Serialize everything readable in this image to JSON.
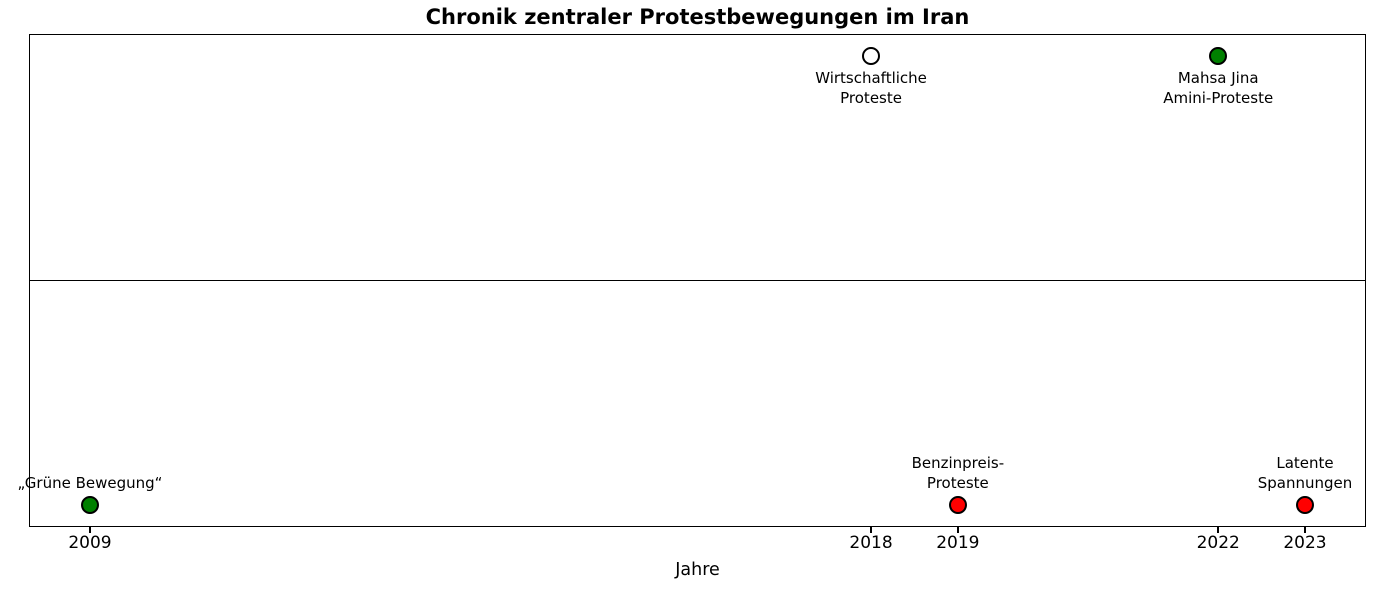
{
  "chart_data": {
    "type": "scatter",
    "title": "Chronik zentraler Protestbewegungen im Iran",
    "xlabel": "Jahre",
    "ylabel": "",
    "x_ticks": [
      "2009",
      "2018",
      "2019",
      "2022",
      "2023"
    ],
    "xlim": [
      2008.3,
      2023.7
    ],
    "grid": false,
    "legend": "none",
    "baseline": "horizontal line across vertical center of plot",
    "marker_edge_color": "#000000",
    "colors": {
      "background": "#ffffff",
      "axis": "#000000",
      "text": "#000000",
      "green_event": "#008000",
      "red_event": "#ff0000",
      "open_event": "#ffffff"
    },
    "events": [
      {
        "year": 2009,
        "label": "„Grüne Bewegung“",
        "label_lines": [
          "„Grüne Bewegung“"
        ],
        "marker_color": "#008000",
        "marker_style": "filled",
        "side": "bottom"
      },
      {
        "year": 2018,
        "label": "Wirtschaftliche Proteste",
        "label_lines": [
          "Wirtschaftliche",
          "Proteste"
        ],
        "marker_color": "#ffffff",
        "marker_style": "open",
        "side": "top"
      },
      {
        "year": 2019,
        "label": "Benzinpreis-Proteste",
        "label_lines": [
          "Benzinpreis-",
          "Proteste"
        ],
        "marker_color": "#ff0000",
        "marker_style": "filled",
        "side": "bottom"
      },
      {
        "year": 2022,
        "label": "Mahsa Jina Amini-Proteste",
        "label_lines": [
          "Mahsa Jina",
          "Amini-Proteste"
        ],
        "marker_color": "#008000",
        "marker_style": "filled",
        "side": "top"
      },
      {
        "year": 2023,
        "label": "Latente Spannungen",
        "label_lines": [
          "Latente",
          "Spannungen"
        ],
        "marker_color": "#ff0000",
        "marker_style": "filled",
        "side": "bottom"
      }
    ]
  }
}
